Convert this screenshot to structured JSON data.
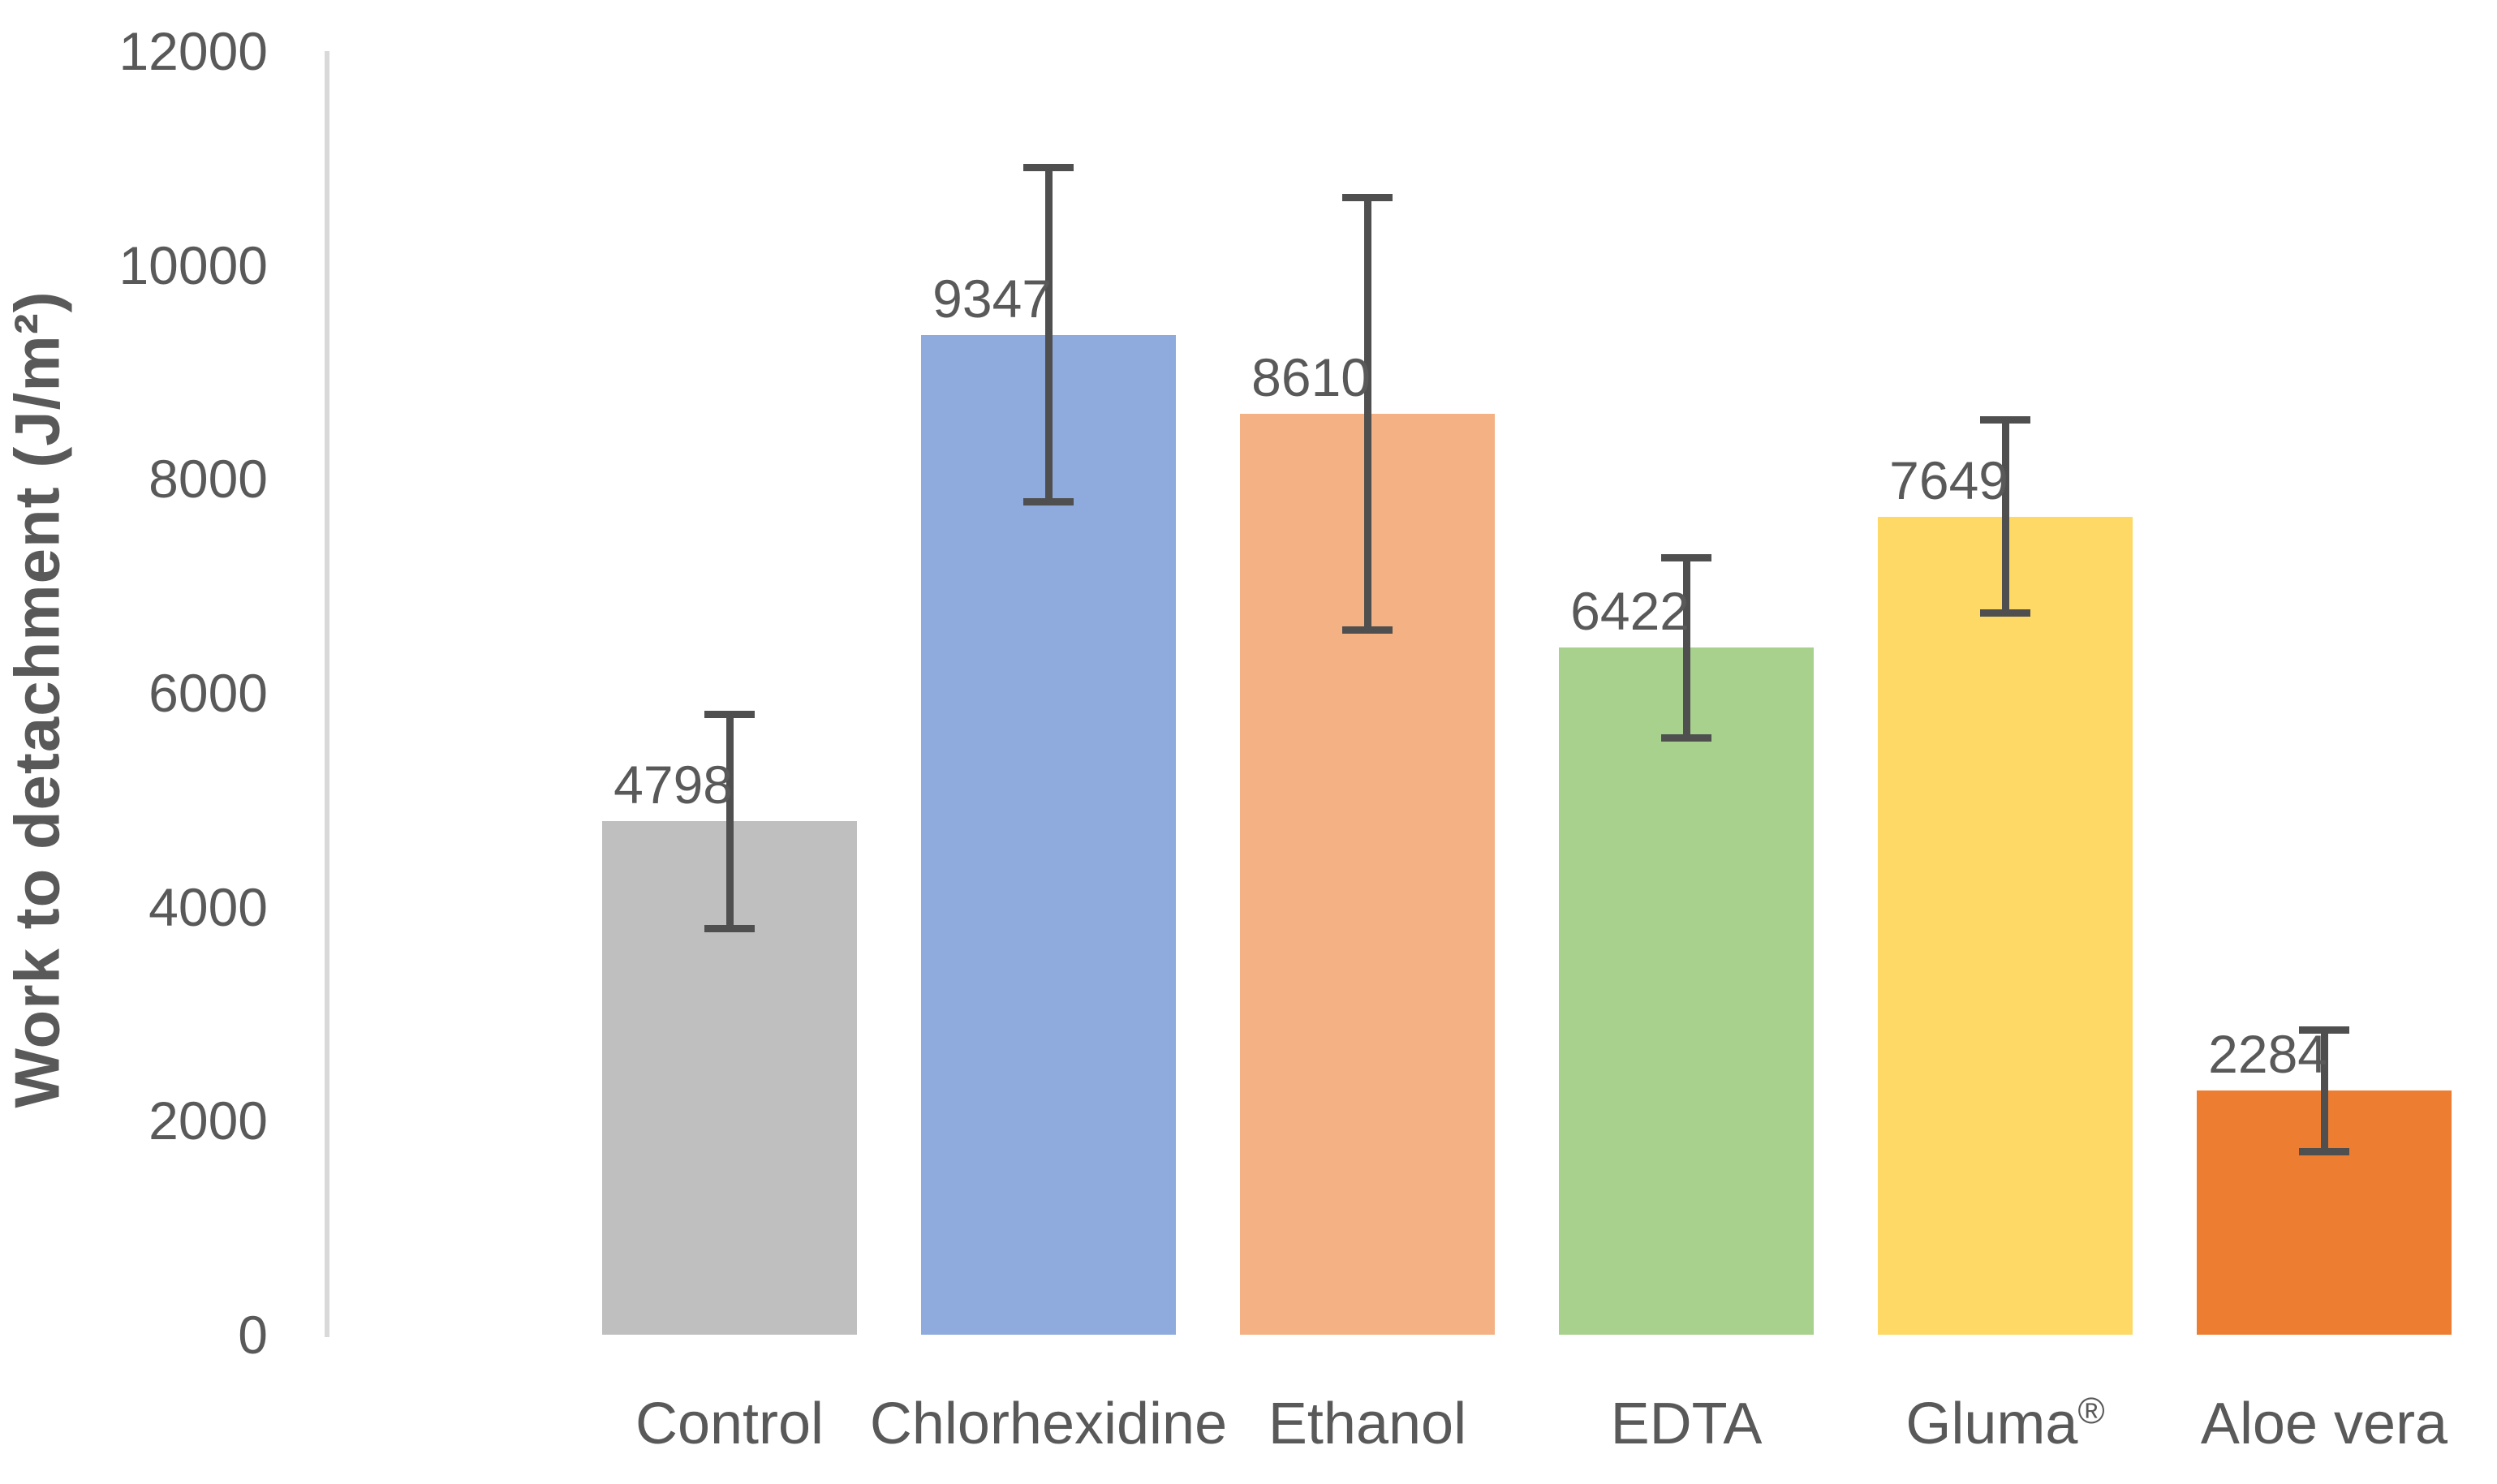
{
  "chart_data": {
    "type": "bar",
    "title": "",
    "xlabel": "",
    "ylabel": "Work to detachment  (J/m²)",
    "categories": [
      "Control",
      "Chlorhexidine",
      "Ethanol",
      "EDTA",
      "Gluma®",
      "Aloe vera"
    ],
    "values": [
      4798,
      9347,
      8610,
      6422,
      7649,
      2284
    ],
    "data_labels": [
      "4798",
      "9347",
      "8610",
      "6422",
      "7649",
      "2284"
    ],
    "error_bars": {
      "upper_whisker_values": [
        5800,
        10910,
        10630,
        7260,
        8550,
        2850
      ],
      "lower_whisker_values": [
        3800,
        7790,
        6590,
        5580,
        6750,
        1710
      ]
    },
    "bar_colors": [
      "#BFBFBF",
      "#8FAADC",
      "#F4B183",
      "#A9D18E",
      "#FFD966",
      "#ED7D31"
    ],
    "yticks": [
      0,
      2000,
      4000,
      6000,
      8000,
      10000,
      12000
    ],
    "ytick_labels": [
      "0",
      "2000",
      "4000",
      "6000",
      "8000",
      "10000",
      "12000"
    ],
    "ylim": [
      0,
      12000
    ],
    "grid": false,
    "legend": false
  },
  "colors": {
    "text": "#595959",
    "axis_line": "#D9D9D9",
    "error_bar": "#4F4F4F",
    "background": "#FFFFFF"
  }
}
